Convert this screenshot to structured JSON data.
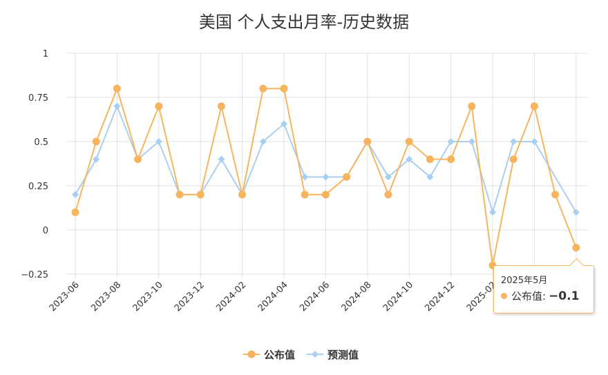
{
  "chart_data": {
    "type": "line",
    "title": "美国 个人支出月率-历史数据",
    "categories": [
      "2023-06",
      "2023-07",
      "2023-08",
      "2023-09",
      "2023-10",
      "2023-11",
      "2023-12",
      "2024-01",
      "2024-02",
      "2024-03",
      "2024-04",
      "2024-05",
      "2024-06",
      "2024-07",
      "2024-08",
      "2024-09",
      "2024-10",
      "2024-11",
      "2024-12",
      "2025-01",
      "2025-02",
      "2025-03",
      "2025-04",
      "2025-05",
      "2025-06"
    ],
    "tick_labels": [
      "2023-06",
      "2023-08",
      "2023-10",
      "2023-12",
      "2024-02",
      "2024-04",
      "2024-06",
      "2024-08",
      "2024-10",
      "2024-12",
      "2025-02",
      "2025-04",
      "2025-06"
    ],
    "ylim": [
      -0.25,
      1
    ],
    "yticks": [
      "1",
      "0.75",
      "0.5",
      "0.25",
      "0",
      "−0.25"
    ],
    "series": [
      {
        "name": "公布值",
        "color": "#f7b45f",
        "values": [
          0.1,
          0.5,
          0.8,
          0.4,
          0.7,
          0.2,
          0.2,
          0.7,
          0.2,
          0.8,
          0.8,
          0.2,
          0.2,
          0.3,
          0.5,
          0.2,
          0.5,
          0.4,
          0.4,
          0.7,
          -0.2,
          0.4,
          0.7,
          0.2,
          -0.1
        ]
      },
      {
        "name": "预测值",
        "color": "#a8cff0",
        "values": [
          0.2,
          0.4,
          0.7,
          0.4,
          0.5,
          0.2,
          0.2,
          0.4,
          0.2,
          0.5,
          0.6,
          0.3,
          0.3,
          0.3,
          0.5,
          0.3,
          0.4,
          0.3,
          0.5,
          0.5,
          0.1,
          0.5,
          0.5,
          null,
          0.1
        ]
      }
    ],
    "legend_position": "bottom-center",
    "grid": true
  },
  "tooltip": {
    "date": "2025年5月",
    "series_label": "公布值:",
    "value": "−0.1"
  }
}
